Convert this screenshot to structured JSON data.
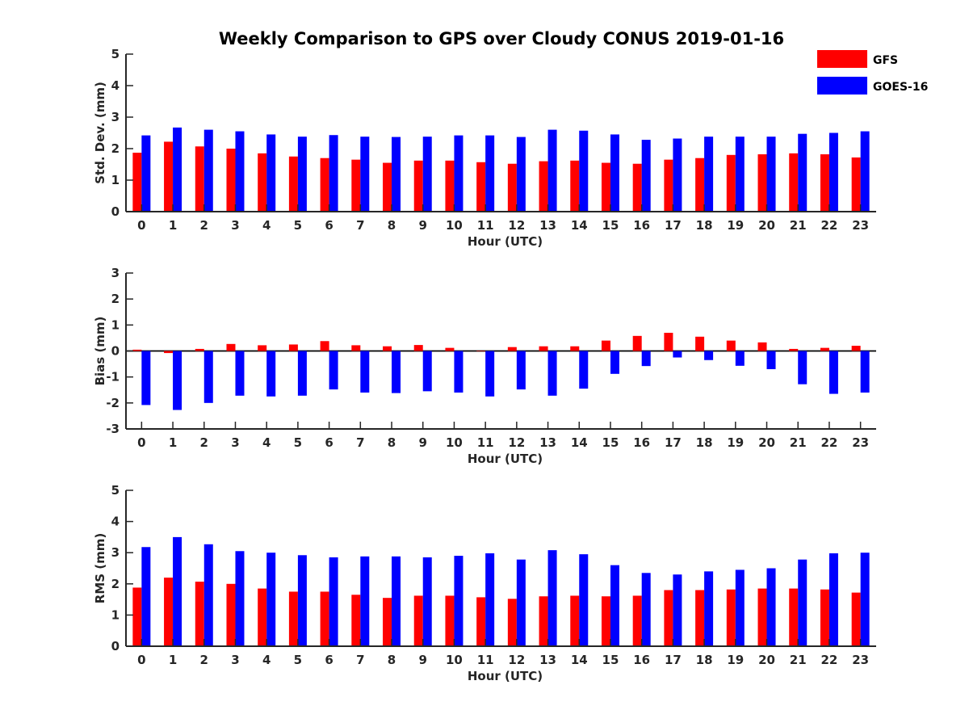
{
  "chart_data": [
    {
      "type": "bar",
      "title": "Weekly Comparison to GPS over Cloudy CONUS 2019-01-16",
      "xlabel": "Hour (UTC)",
      "ylabel": "Std. Dev. (mm)",
      "ylim": [
        0,
        5
      ],
      "yticks": [
        "0",
        "1",
        "2",
        "3",
        "4",
        "5"
      ],
      "categories": [
        "0",
        "1",
        "2",
        "3",
        "4",
        "5",
        "6",
        "7",
        "8",
        "9",
        "10",
        "11",
        "12",
        "13",
        "14",
        "15",
        "16",
        "17",
        "18",
        "19",
        "20",
        "21",
        "22",
        "23"
      ],
      "series": [
        {
          "name": "GFS",
          "color": "#ff0000",
          "values": [
            1.87,
            2.22,
            2.07,
            2.0,
            1.85,
            1.75,
            1.7,
            1.65,
            1.55,
            1.62,
            1.62,
            1.57,
            1.52,
            1.6,
            1.62,
            1.55,
            1.52,
            1.65,
            1.7,
            1.8,
            1.82,
            1.85,
            1.82,
            1.72
          ]
        },
        {
          "name": "GOES-16",
          "color": "#0000ff",
          "values": [
            2.42,
            2.67,
            2.6,
            2.55,
            2.45,
            2.38,
            2.43,
            2.38,
            2.37,
            2.38,
            2.42,
            2.42,
            2.37,
            2.6,
            2.57,
            2.45,
            2.28,
            2.32,
            2.38,
            2.38,
            2.38,
            2.47,
            2.5,
            2.55
          ]
        }
      ],
      "legend": "top-right",
      "grid": false
    },
    {
      "type": "bar",
      "xlabel": "Hour (UTC)",
      "ylabel": "Bias (mm)",
      "ylim": [
        -3,
        3
      ],
      "yticks": [
        "-3",
        "-2",
        "-1",
        "0",
        "1",
        "2",
        "3"
      ],
      "categories": [
        "0",
        "1",
        "2",
        "3",
        "4",
        "5",
        "6",
        "7",
        "8",
        "9",
        "10",
        "11",
        "12",
        "13",
        "14",
        "15",
        "16",
        "17",
        "18",
        "19",
        "20",
        "21",
        "22",
        "23"
      ],
      "series": [
        {
          "name": "GFS",
          "color": "#ff0000",
          "values": [
            0.05,
            -0.08,
            0.08,
            0.27,
            0.22,
            0.25,
            0.38,
            0.22,
            0.18,
            0.23,
            0.12,
            0.0,
            0.15,
            0.18,
            0.18,
            0.4,
            0.58,
            0.7,
            0.55,
            0.4,
            0.33,
            0.08,
            0.12,
            0.2
          ]
        },
        {
          "name": "GOES-16",
          "color": "#0000ff",
          "values": [
            -2.08,
            -2.27,
            -2.0,
            -1.72,
            -1.75,
            -1.72,
            -1.48,
            -1.6,
            -1.62,
            -1.55,
            -1.6,
            -1.75,
            -1.48,
            -1.72,
            -1.45,
            -0.88,
            -0.58,
            -0.25,
            -0.35,
            -0.57,
            -0.7,
            -1.28,
            -1.65,
            -1.6
          ]
        }
      ],
      "grid": false
    },
    {
      "type": "bar",
      "xlabel": "Hour (UTC)",
      "ylabel": "RMS (mm)",
      "ylim": [
        0,
        5
      ],
      "yticks": [
        "0",
        "1",
        "2",
        "3",
        "4",
        "5"
      ],
      "categories": [
        "0",
        "1",
        "2",
        "3",
        "4",
        "5",
        "6",
        "7",
        "8",
        "9",
        "10",
        "11",
        "12",
        "13",
        "14",
        "15",
        "16",
        "17",
        "18",
        "19",
        "20",
        "21",
        "22",
        "23"
      ],
      "series": [
        {
          "name": "GFS",
          "color": "#ff0000",
          "values": [
            1.88,
            2.2,
            2.07,
            2.0,
            1.85,
            1.75,
            1.75,
            1.65,
            1.55,
            1.62,
            1.62,
            1.57,
            1.52,
            1.6,
            1.62,
            1.6,
            1.62,
            1.8,
            1.8,
            1.82,
            1.85,
            1.85,
            1.82,
            1.72
          ]
        },
        {
          "name": "GOES-16",
          "color": "#0000ff",
          "values": [
            3.18,
            3.5,
            3.27,
            3.05,
            3.0,
            2.92,
            2.85,
            2.88,
            2.88,
            2.85,
            2.9,
            2.98,
            2.78,
            3.08,
            2.95,
            2.6,
            2.35,
            2.3,
            2.4,
            2.45,
            2.5,
            2.78,
            2.98,
            3.0
          ]
        }
      ],
      "grid": false
    }
  ]
}
